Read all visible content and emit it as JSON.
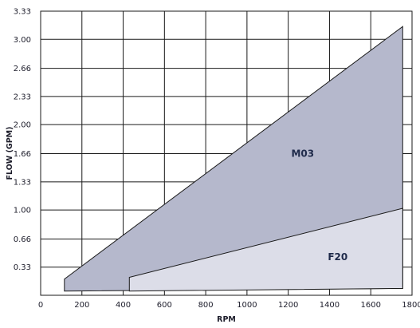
{
  "chart_data": {
    "type": "area",
    "xlabel": "RPM",
    "ylabel": "FLOW (GPM)",
    "xlim": [
      0,
      1800
    ],
    "ylim": [
      0,
      3.33
    ],
    "x_ticks": [
      "0",
      "200",
      "400",
      "600",
      "800",
      "1000",
      "1200",
      "1400",
      "1600",
      "1800"
    ],
    "y_ticks": [
      "0.33",
      "0.66",
      "1.00",
      "1.33",
      "1.66",
      "2.00",
      "2.33",
      "2.66",
      "3.00",
      "3.33"
    ],
    "grid": true,
    "series": [
      {
        "name": "M03",
        "color": "#b5b8cc",
        "polygon": [
          [
            115,
            0.05
          ],
          [
            115,
            0.19
          ],
          [
            1755,
            3.15
          ],
          [
            1755,
            0.08
          ]
        ]
      },
      {
        "name": "F20",
        "color": "#dcdde8",
        "polygon": [
          [
            430,
            0.05
          ],
          [
            430,
            0.21
          ],
          [
            1755,
            1.02
          ],
          [
            1755,
            0.08
          ]
        ]
      }
    ]
  }
}
